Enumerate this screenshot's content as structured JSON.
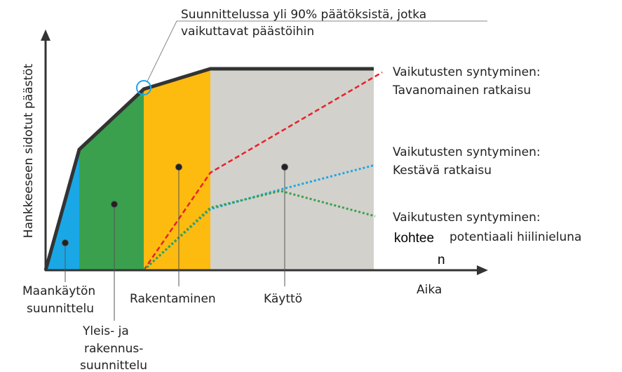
{
  "callout": {
    "lines": [
      "Suunnittelussa yli 90% päätöksistä, jotka",
      "vaikuttavat päästöihin"
    ]
  },
  "y_axis_label": "Hankkeeseen sidotut päästöt",
  "x_axis_label": "Aika",
  "phases": [
    {
      "lines": [
        "Maankäytön",
        "suunnittelu"
      ]
    },
    {
      "lines": [
        "Yleis- ja",
        "rakennus-",
        "suunnittelu"
      ]
    },
    {
      "lines": [
        "Rakentaminen"
      ]
    },
    {
      "lines": [
        "Käyttö"
      ]
    }
  ],
  "curves": [
    {
      "lines": [
        "Vaikutusten syntyminen:",
        "Tavanomainen ratkaisu"
      ]
    },
    {
      "lines": [
        "Vaikutusten syntyminen:",
        "Kestävä ratkaisu"
      ]
    },
    {
      "lines": [
        "Vaikutusten syntyminen:",
        "kohtee",
        "potentiaali hiilinieluna",
        "n"
      ]
    }
  ]
}
